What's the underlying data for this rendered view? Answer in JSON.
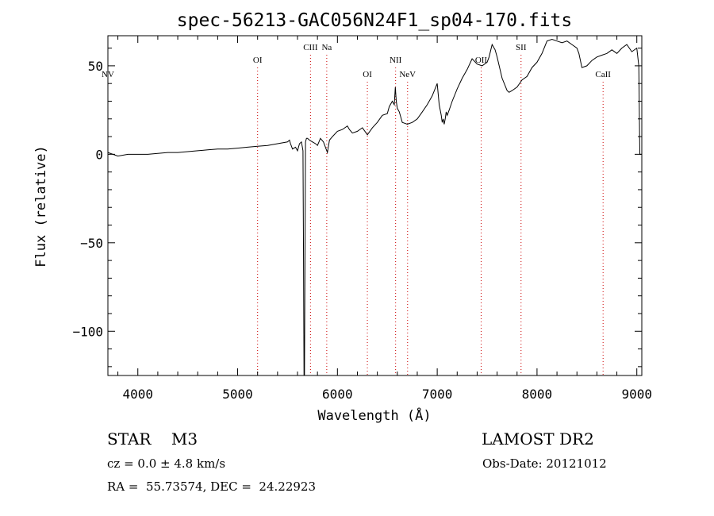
{
  "chart_data": {
    "type": "line",
    "title": "spec-56213-GAC056N24F1_sp04-170.fits",
    "xlabel": "Wavelength (Å)",
    "ylabel": "Flux (relative)",
    "xlim": [
      3700,
      9050
    ],
    "ylim": [
      -125,
      67
    ],
    "x_ticks": [
      4000,
      5000,
      6000,
      7000,
      8000,
      9000
    ],
    "y_ticks": [
      -100,
      -50,
      0,
      50
    ],
    "grid": false,
    "series": [
      {
        "x": [
          3700,
          3800,
          3900,
          4000,
          4100,
          4200,
          4300,
          4400,
          4500,
          4600,
          4700,
          4800,
          4900,
          5000,
          5100,
          5200,
          5300,
          5400,
          5500,
          5520,
          5530,
          5550,
          5580,
          5600,
          5620,
          5640,
          5655,
          5660,
          5665,
          5670,
          5675,
          5680,
          5685,
          5690,
          5700,
          5720,
          5750,
          5780,
          5800,
          5830,
          5860,
          5880,
          5900,
          5920,
          5950,
          6000,
          6050,
          6100,
          6120,
          6150,
          6200,
          6250,
          6300,
          6350,
          6400,
          6450,
          6500,
          6520,
          6550,
          6570,
          6580,
          6590,
          6600,
          6620,
          6650,
          6700,
          6750,
          6800,
          6850,
          6900,
          6950,
          7000,
          7020,
          7040,
          7050,
          7060,
          7070,
          7080,
          7090,
          7100,
          7120,
          7150,
          7200,
          7250,
          7300,
          7350,
          7400,
          7450,
          7500,
          7520,
          7550,
          7580,
          7600,
          7650,
          7700,
          7720,
          7750,
          7800,
          7850,
          7900,
          7950,
          8000,
          8050,
          8100,
          8150,
          8200,
          8250,
          8300,
          8350,
          8400,
          8420,
          8450,
          8500,
          8550,
          8600,
          8650,
          8700,
          8750,
          8800,
          8850,
          8900,
          8950,
          9000,
          9020,
          9030,
          9040,
          9050
        ],
        "y": [
          1,
          -1,
          0,
          0,
          0,
          0.5,
          1,
          1,
          1.5,
          2,
          2.5,
          3,
          3,
          3.5,
          4,
          4.5,
          5,
          6,
          7,
          8,
          6,
          3,
          4,
          2,
          6,
          7,
          2,
          -60,
          -125,
          -125,
          -60,
          7,
          8,
          9,
          9,
          8,
          7,
          6,
          5,
          9,
          7,
          4,
          1,
          8,
          10,
          13,
          14,
          16,
          14,
          12,
          13,
          15,
          11,
          15,
          18,
          22,
          23,
          27,
          30,
          28,
          38,
          30,
          26,
          24,
          18,
          17,
          18,
          20,
          24,
          28,
          33,
          40,
          28,
          22,
          18,
          20,
          17,
          20,
          24,
          22,
          25,
          30,
          37,
          43,
          48,
          54,
          51,
          50,
          52,
          55,
          62,
          59,
          55,
          43,
          36,
          35,
          36,
          38,
          42,
          44,
          49,
          52,
          57,
          64,
          65,
          64,
          63,
          64,
          62,
          60,
          57,
          49,
          50,
          53,
          55,
          56,
          57,
          59,
          57,
          60,
          62,
          58,
          60,
          50,
          0,
          0,
          0
        ]
      }
    ],
    "lines": [
      {
        "label": "NV",
        "wavelength": 3700,
        "tier": "low"
      },
      {
        "label": "OI",
        "wavelength": 5200,
        "tier": "mid"
      },
      {
        "label": "CIII",
        "wavelength": 5730,
        "tier": "high"
      },
      {
        "label": "Na",
        "wavelength": 5893,
        "tier": "high"
      },
      {
        "label": "OI",
        "wavelength": 6300,
        "tier": "low"
      },
      {
        "label": "NII",
        "wavelength": 6583,
        "tier": "mid"
      },
      {
        "label": "NeV",
        "wavelength": 6703,
        "tier": "low"
      },
      {
        "label": "OII",
        "wavelength": 7440,
        "tier": "mid"
      },
      {
        "label": "SII",
        "wavelength": 7840,
        "tier": "high"
      },
      {
        "label": "CaII",
        "wavelength": 8662,
        "tier": "low"
      }
    ],
    "line_color": "#cc0000"
  },
  "footer": {
    "object": "STAR    M3",
    "survey": "LAMOST DR2",
    "cz": "cz = 0.0 ± 4.8 km/s",
    "obs_date": "Obs-Date: 20121012",
    "coords": "RA =  55.73574, DEC =  24.22923"
  }
}
